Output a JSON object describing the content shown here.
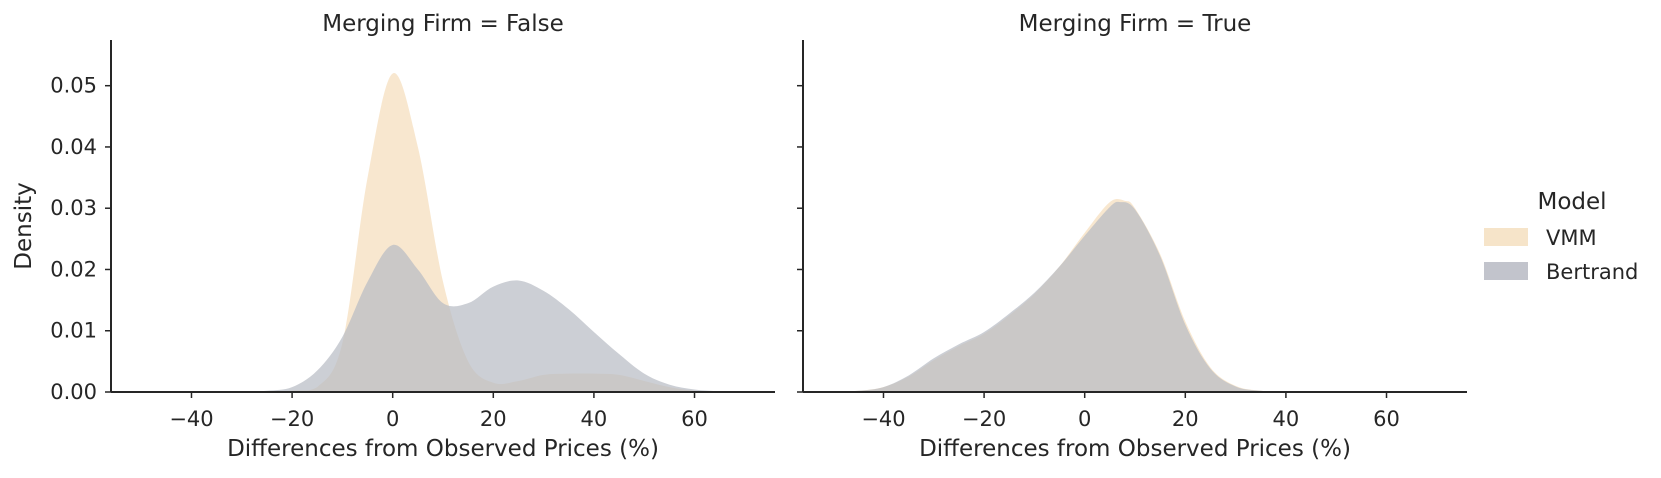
{
  "chart_data": {
    "type": "area",
    "subtype": "kde-density",
    "ylabel": "Density",
    "y_ticks": [
      "0.00",
      "0.01",
      "0.02",
      "0.03",
      "0.04",
      "0.05"
    ],
    "y_tick_values": [
      0,
      0.01,
      0.02,
      0.03,
      0.04,
      0.05
    ],
    "ylim": [
      0,
      0.0555
    ],
    "xlim": [
      -56,
      76
    ],
    "x_ticks": [
      "−40",
      "−20",
      "0",
      "20",
      "40",
      "60"
    ],
    "x_tick_values": [
      -40,
      -20,
      0,
      20,
      40,
      60
    ],
    "grid": false,
    "legend": {
      "title": "Model",
      "position": "right",
      "entries": [
        {
          "name": "VMM",
          "color": "#f5dfbf"
        },
        {
          "name": "Bertrand",
          "color": "#b7bac3"
        }
      ]
    },
    "panels": [
      {
        "title": "Merging Firm = False",
        "xlabel": "Differences from Observed Prices (%)",
        "series": [
          {
            "name": "VMM",
            "color": "#f5dfbf",
            "x": [
              -30,
              -20,
              -15,
              -10,
              -5,
              0,
              5,
              10,
              15,
              20,
              25,
              30,
              35,
              40,
              45,
              50,
              55,
              60,
              65
            ],
            "y": [
              0,
              0.0002,
              0.0008,
              0.008,
              0.035,
              0.052,
              0.04,
              0.018,
              0.005,
              0.0015,
              0.0018,
              0.0028,
              0.003,
              0.003,
              0.0028,
              0.0018,
              0.0008,
              0.0002,
              0
            ]
          },
          {
            "name": "Bertrand",
            "color": "#b7bac3",
            "x": [
              -30,
              -25,
              -20,
              -15,
              -10,
              -5,
              0,
              5,
              10,
              15,
              20,
              25,
              30,
              35,
              40,
              45,
              50,
              55,
              60,
              65,
              70
            ],
            "y": [
              0,
              0.0002,
              0.0008,
              0.0035,
              0.009,
              0.018,
              0.024,
              0.02,
              0.0145,
              0.0145,
              0.0172,
              0.0182,
              0.0165,
              0.0135,
              0.0098,
              0.0062,
              0.003,
              0.0012,
              0.0004,
              0.0001,
              0
            ]
          }
        ]
      },
      {
        "title": "Merging Firm = True",
        "xlabel": "Differences from Observed Prices (%)",
        "series": [
          {
            "name": "VMM",
            "color": "#f5dfbf",
            "x": [
              -50,
              -45,
              -40,
              -35,
              -30,
              -25,
              -20,
              -15,
              -10,
              -5,
              0,
              5,
              8,
              10,
              15,
              20,
              25,
              30,
              35,
              40
            ],
            "y": [
              0,
              0.0002,
              0.0008,
              0.0025,
              0.0052,
              0.0075,
              0.0095,
              0.0125,
              0.016,
              0.0205,
              0.026,
              0.031,
              0.0312,
              0.03,
              0.0225,
              0.0115,
              0.004,
              0.001,
              0.0002,
              0
            ]
          },
          {
            "name": "Bertrand",
            "color": "#b7bac3",
            "x": [
              -50,
              -45,
              -40,
              -35,
              -30,
              -25,
              -20,
              -15,
              -10,
              -5,
              0,
              5,
              7,
              10,
              15,
              20,
              25,
              30,
              35,
              40
            ],
            "y": [
              0,
              0.0002,
              0.0008,
              0.0027,
              0.0055,
              0.0078,
              0.0098,
              0.0128,
              0.0162,
              0.0205,
              0.0255,
              0.0302,
              0.031,
              0.0298,
              0.0222,
              0.011,
              0.0038,
              0.0009,
              0.0002,
              0
            ]
          }
        ]
      }
    ]
  }
}
